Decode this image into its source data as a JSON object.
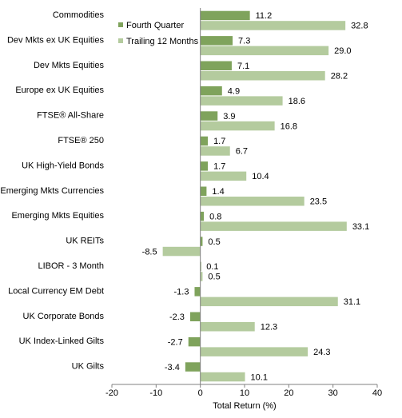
{
  "chart_data": {
    "type": "bar",
    "orientation": "horizontal",
    "categories": [
      "Commodities",
      "Dev Mkts ex UK Equities",
      "Dev Mkts Equities",
      "Europe ex UK Equities",
      "FTSE® All-Share",
      "FTSE® 250",
      "UK High-Yield Bonds",
      "Emerging Mkts Currencies",
      "Emerging Mkts Equities",
      "UK REITs",
      "LIBOR - 3 Month",
      "Local Currency EM Debt",
      "UK Corporate Bonds",
      "UK Index-Linked Gilts",
      "UK Gilts"
    ],
    "series": [
      {
        "name": "Fourth Quarter",
        "color": "#7fa35c",
        "values": [
          11.2,
          7.3,
          7.1,
          4.9,
          3.9,
          1.7,
          1.7,
          1.4,
          0.8,
          0.5,
          0.1,
          -1.3,
          -2.3,
          -2.7,
          -3.4
        ],
        "labels": [
          "11.2",
          "7.3",
          "7.1",
          "4.9",
          "3.9",
          "1.7",
          "1.7",
          "1.4",
          "0.8",
          "0.5",
          "0.1",
          "-1.3",
          "-2.3",
          "-2.7",
          "-3.4"
        ]
      },
      {
        "name": "Trailing 12 Months",
        "color": "#b4cb9e",
        "values": [
          32.8,
          29.0,
          28.2,
          18.6,
          16.8,
          6.7,
          10.4,
          23.5,
          33.1,
          -8.5,
          0.5,
          31.1,
          12.3,
          24.3,
          10.1
        ],
        "labels": [
          "32.8",
          "29.0",
          "28.2",
          "18.6",
          "16.8",
          "6.7",
          "10.4",
          "23.5",
          "33.1",
          "-8.5",
          "0.5",
          "31.1",
          "12.3",
          "24.3",
          "10.1"
        ]
      }
    ],
    "xlabel": "Total Return (%)",
    "ylabel": "",
    "xlim": [
      -20,
      40
    ],
    "xticks": [
      -20,
      -10,
      0,
      10,
      20,
      30,
      40
    ],
    "xtick_labels": [
      "-20",
      "-10",
      "0",
      "10",
      "20",
      "30",
      "40"
    ],
    "grid": false,
    "legend_position": "top-left"
  }
}
